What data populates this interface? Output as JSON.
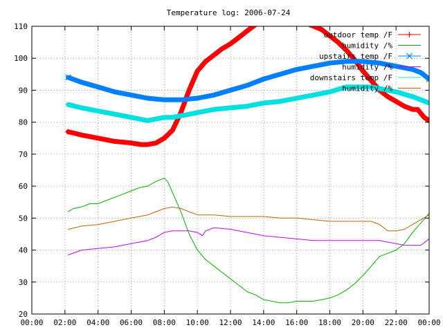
{
  "chart_data": {
    "type": "line",
    "title": "Temperature log: 2006-07-24",
    "xlabel": "",
    "ylabel": "",
    "xlim": [
      0,
      24
    ],
    "ylim": [
      20,
      110
    ],
    "grid": true,
    "legend_position": "top-right",
    "x_ticks": [
      "00:00",
      "02:00",
      "04:00",
      "06:00",
      "08:00",
      "10:00",
      "12:00",
      "14:00",
      "16:00",
      "18:00",
      "20:00",
      "22:00",
      "00:00"
    ],
    "y_ticks": [
      "20",
      "30",
      "40",
      "50",
      "60",
      "70",
      "80",
      "90",
      "100",
      "110"
    ],
    "series": [
      {
        "name": "outdoor temp /F",
        "color": "#ff0000",
        "marker": "plus",
        "thick": true,
        "x": [
          2.2,
          3,
          4,
          5,
          6,
          6.6,
          7,
          7.5,
          8,
          8.5,
          9,
          9.5,
          10,
          10.5,
          11,
          11.5,
          12,
          12.5,
          13,
          13.5
        ],
        "y": [
          77,
          76,
          75,
          74,
          73.5,
          73,
          73,
          73.5,
          75,
          77.5,
          83,
          90,
          96,
          99,
          101,
          103,
          104.5,
          106.5,
          108.5,
          110.5
        ],
        "x2": [
          16.8,
          17.5,
          18,
          18.5,
          19,
          19.5,
          20,
          20.5,
          21,
          21.5,
          22,
          22.5,
          23,
          23.3,
          23.7,
          24
        ],
        "y2": [
          110.5,
          109,
          107,
          105,
          102.5,
          99.5,
          96,
          93,
          90,
          88,
          86.5,
          85,
          84,
          84,
          81.5,
          80.5
        ]
      },
      {
        "name": "humidity /%",
        "color": "#00b000",
        "marker": "none",
        "thick": false,
        "x": [
          2.2,
          2.5,
          3,
          3.5,
          4,
          4.5,
          5,
          5.5,
          6,
          6.5,
          7,
          7.5,
          8,
          8.2,
          8.5,
          9,
          9.5,
          10,
          10.5,
          11,
          11.5,
          12,
          12.5,
          13,
          13.5,
          14,
          14.5,
          15,
          15.5,
          16,
          16.5,
          17,
          17.5,
          18,
          18.5,
          19,
          19.5,
          20,
          20.5,
          21,
          21.5,
          22,
          22.5,
          23,
          23.5,
          24
        ],
        "y": [
          52,
          53,
          53.5,
          54.5,
          54.5,
          55.5,
          56.5,
          57.5,
          58.5,
          59.5,
          60,
          61.5,
          62.5,
          61.5,
          58,
          52,
          45,
          40,
          37,
          35,
          33,
          31,
          29,
          27,
          26,
          24.5,
          24,
          23.5,
          23.5,
          24,
          24,
          24,
          24.5,
          25,
          26,
          27.5,
          29.5,
          32,
          35,
          38,
          39,
          40,
          42,
          45.5,
          48.5,
          51.5
        ]
      },
      {
        "name": "upstairs temp /F",
        "color": "#0080ff",
        "marker": "x",
        "thick": true,
        "x": [
          2.2,
          3,
          4,
          5,
          6,
          7,
          8,
          9,
          10,
          11,
          12,
          13,
          14,
          15,
          16,
          17,
          18,
          19,
          20,
          21,
          22,
          23,
          23.5,
          24
        ],
        "y": [
          94,
          92.5,
          91,
          89.5,
          88.5,
          87.5,
          87,
          87,
          87.5,
          88.5,
          90,
          91.5,
          93.5,
          95,
          96.5,
          97.5,
          98.5,
          99,
          99,
          98.5,
          97.5,
          96.5,
          95.5,
          93.5
        ]
      },
      {
        "name": "humidity /%",
        "color": "#c000ff",
        "marker": "none",
        "thick": false,
        "x": [
          2.2,
          3,
          4,
          5,
          6,
          7,
          7.5,
          8,
          8.5,
          9,
          9.5,
          10,
          10.3,
          10.5,
          11,
          12,
          13,
          14,
          15,
          16,
          17,
          18,
          19,
          20,
          21,
          22,
          22.5,
          23,
          23.5,
          24
        ],
        "y": [
          38.5,
          40,
          40.5,
          41,
          42,
          43,
          44,
          45.5,
          46,
          46,
          46,
          45.5,
          44.5,
          46,
          47,
          46.5,
          45.5,
          44.5,
          44,
          43.5,
          43,
          43,
          43,
          43,
          43,
          42,
          41.5,
          41.5,
          41.5,
          43.5
        ]
      },
      {
        "name": "downstairs temp /F",
        "color": "#00e0e0",
        "marker": "none",
        "thick": true,
        "x": [
          2.2,
          3,
          4,
          5,
          6,
          7,
          7.5,
          8,
          8.5,
          9,
          10,
          11,
          12,
          13,
          14,
          15,
          16,
          17,
          18,
          19,
          20,
          20.5,
          21,
          22,
          23,
          24
        ],
        "y": [
          85.5,
          84.5,
          83.5,
          82.5,
          81.5,
          80.5,
          81,
          81.5,
          81.5,
          82,
          83,
          84,
          84.5,
          85,
          86,
          86.5,
          87.5,
          88.5,
          89.5,
          91,
          91,
          91,
          90.5,
          89.5,
          88,
          86
        ]
      },
      {
        "name": "humidity /%",
        "color": "#c06000",
        "marker": "none",
        "thick": false,
        "x": [
          2.2,
          3,
          4,
          5,
          6,
          7,
          7.5,
          8,
          8.5,
          9,
          9.5,
          10,
          11,
          12,
          13,
          14,
          15,
          16,
          17,
          18,
          19,
          20,
          20.5,
          21,
          21.5,
          22,
          22.5,
          23,
          23.5,
          24
        ],
        "y": [
          46.5,
          47.5,
          48,
          49,
          50,
          51,
          52,
          53,
          53.5,
          53,
          52,
          51,
          51,
          50.5,
          50.5,
          50.5,
          50,
          50,
          49.5,
          49,
          49,
          49,
          49,
          48,
          46,
          46,
          46.5,
          48,
          49.5,
          51
        ]
      }
    ]
  }
}
